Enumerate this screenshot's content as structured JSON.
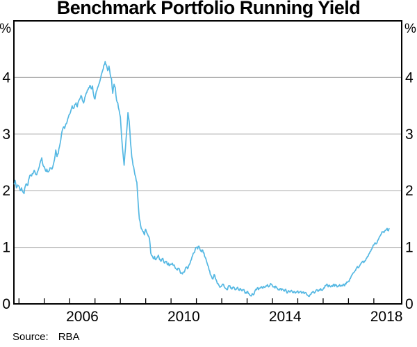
{
  "title": "Benchmark Portfolio Running Yield",
  "source": {
    "label": "Source:",
    "value": "RBA"
  },
  "chart_data": {
    "type": "line",
    "title": "Benchmark Portfolio Running Yield",
    "xlabel": "",
    "ylabel": "%",
    "unit_label": "%",
    "grid": "horizontal",
    "legend": "none",
    "xlim": [
      2003.8,
      2019.1
    ],
    "ylim": [
      0,
      5
    ],
    "yticks": [
      0,
      1,
      2,
      3,
      4
    ],
    "xticks": [
      2004,
      2005,
      2006,
      2007,
      2008,
      2009,
      2010,
      2011,
      2012,
      2013,
      2014,
      2015,
      2016,
      2017,
      2018
    ],
    "xlabels": [
      {
        "x": 2006.5,
        "text": "2006"
      },
      {
        "x": 2010.5,
        "text": "2010"
      },
      {
        "x": 2014.5,
        "text": "2014"
      },
      {
        "x": 2018.5,
        "text": "2018"
      }
    ],
    "colors": {
      "line": "#55b8e3",
      "grid": "#b0b0b0",
      "axis": "#000000"
    },
    "series": [
      {
        "name": "Benchmark portfolio running yield",
        "color": "#55b8e3",
        "points": [
          [
            2003.81,
            2.12
          ],
          [
            2003.85,
            2.18
          ],
          [
            2003.9,
            2.05
          ],
          [
            2003.95,
            2.1
          ],
          [
            2004.0,
            2.08
          ],
          [
            2004.05,
            2.0
          ],
          [
            2004.1,
            2.05
          ],
          [
            2004.15,
            1.98
          ],
          [
            2004.2,
            1.95
          ],
          [
            2004.25,
            2.08
          ],
          [
            2004.3,
            2.12
          ],
          [
            2004.35,
            2.1
          ],
          [
            2004.4,
            2.22
          ],
          [
            2004.45,
            2.28
          ],
          [
            2004.5,
            2.26
          ],
          [
            2004.55,
            2.3
          ],
          [
            2004.6,
            2.36
          ],
          [
            2004.65,
            2.3
          ],
          [
            2004.7,
            2.28
          ],
          [
            2004.75,
            2.35
          ],
          [
            2004.8,
            2.42
          ],
          [
            2004.85,
            2.52
          ],
          [
            2004.9,
            2.58
          ],
          [
            2004.95,
            2.45
          ],
          [
            2005.0,
            2.42
          ],
          [
            2005.05,
            2.35
          ],
          [
            2005.1,
            2.38
          ],
          [
            2005.15,
            2.33
          ],
          [
            2005.2,
            2.36
          ],
          [
            2005.25,
            2.4
          ],
          [
            2005.3,
            2.38
          ],
          [
            2005.35,
            2.45
          ],
          [
            2005.4,
            2.55
          ],
          [
            2005.45,
            2.72
          ],
          [
            2005.5,
            2.6
          ],
          [
            2005.55,
            2.65
          ],
          [
            2005.6,
            2.78
          ],
          [
            2005.65,
            2.9
          ],
          [
            2005.7,
            3.05
          ],
          [
            2005.75,
            3.12
          ],
          [
            2005.8,
            3.1
          ],
          [
            2005.85,
            3.18
          ],
          [
            2005.9,
            3.22
          ],
          [
            2005.95,
            3.3
          ],
          [
            2006.0,
            3.35
          ],
          [
            2006.05,
            3.42
          ],
          [
            2006.1,
            3.5
          ],
          [
            2006.15,
            3.45
          ],
          [
            2006.2,
            3.52
          ],
          [
            2006.25,
            3.55
          ],
          [
            2006.3,
            3.48
          ],
          [
            2006.35,
            3.58
          ],
          [
            2006.4,
            3.62
          ],
          [
            2006.45,
            3.68
          ],
          [
            2006.5,
            3.6
          ],
          [
            2006.55,
            3.55
          ],
          [
            2006.6,
            3.65
          ],
          [
            2006.65,
            3.72
          ],
          [
            2006.7,
            3.78
          ],
          [
            2006.75,
            3.82
          ],
          [
            2006.8,
            3.86
          ],
          [
            2006.85,
            3.8
          ],
          [
            2006.9,
            3.85
          ],
          [
            2006.95,
            3.68
          ],
          [
            2007.0,
            3.62
          ],
          [
            2007.05,
            3.75
          ],
          [
            2007.1,
            3.82
          ],
          [
            2007.15,
            3.88
          ],
          [
            2007.2,
            3.95
          ],
          [
            2007.25,
            4.05
          ],
          [
            2007.3,
            4.12
          ],
          [
            2007.35,
            4.22
          ],
          [
            2007.4,
            4.28
          ],
          [
            2007.45,
            4.22
          ],
          [
            2007.5,
            4.12
          ],
          [
            2007.55,
            4.2
          ],
          [
            2007.6,
            4.05
          ],
          [
            2007.65,
            3.98
          ],
          [
            2007.7,
            3.72
          ],
          [
            2007.75,
            3.88
          ],
          [
            2007.8,
            3.82
          ],
          [
            2007.85,
            3.6
          ],
          [
            2007.9,
            3.55
          ],
          [
            2007.95,
            3.42
          ],
          [
            2008.0,
            3.3
          ],
          [
            2008.05,
            2.95
          ],
          [
            2008.1,
            2.68
          ],
          [
            2008.15,
            2.45
          ],
          [
            2008.2,
            2.75
          ],
          [
            2008.25,
            3.05
          ],
          [
            2008.3,
            3.38
          ],
          [
            2008.35,
            3.22
          ],
          [
            2008.4,
            2.85
          ],
          [
            2008.45,
            2.6
          ],
          [
            2008.5,
            2.45
          ],
          [
            2008.55,
            2.35
          ],
          [
            2008.6,
            2.25
          ],
          [
            2008.65,
            2.15
          ],
          [
            2008.7,
            1.8
          ],
          [
            2008.75,
            1.5
          ],
          [
            2008.8,
            1.38
          ],
          [
            2008.85,
            1.32
          ],
          [
            2008.9,
            1.28
          ],
          [
            2008.95,
            1.22
          ],
          [
            2009.0,
            1.32
          ],
          [
            2009.05,
            1.25
          ],
          [
            2009.1,
            1.2
          ],
          [
            2009.15,
            1.15
          ],
          [
            2009.2,
            0.9
          ],
          [
            2009.25,
            0.85
          ],
          [
            2009.3,
            0.8
          ],
          [
            2009.35,
            0.84
          ],
          [
            2009.4,
            0.78
          ],
          [
            2009.45,
            0.82
          ],
          [
            2009.5,
            0.86
          ],
          [
            2009.55,
            0.78
          ],
          [
            2009.6,
            0.75
          ],
          [
            2009.65,
            0.8
          ],
          [
            2009.7,
            0.76
          ],
          [
            2009.75,
            0.72
          ],
          [
            2009.8,
            0.75
          ],
          [
            2009.85,
            0.7
          ],
          [
            2009.9,
            0.72
          ],
          [
            2009.95,
            0.68
          ],
          [
            2010.0,
            0.7
          ],
          [
            2010.05,
            0.72
          ],
          [
            2010.1,
            0.68
          ],
          [
            2010.15,
            0.65
          ],
          [
            2010.2,
            0.62
          ],
          [
            2010.25,
            0.6
          ],
          [
            2010.3,
            0.63
          ],
          [
            2010.35,
            0.58
          ],
          [
            2010.4,
            0.55
          ],
          [
            2010.45,
            0.53
          ],
          [
            2010.5,
            0.56
          ],
          [
            2010.55,
            0.6
          ],
          [
            2010.6,
            0.65
          ],
          [
            2010.65,
            0.62
          ],
          [
            2010.7,
            0.68
          ],
          [
            2010.75,
            0.72
          ],
          [
            2010.8,
            0.78
          ],
          [
            2010.85,
            0.85
          ],
          [
            2010.9,
            0.9
          ],
          [
            2010.95,
            0.96
          ],
          [
            2011.0,
            1.0
          ],
          [
            2011.05,
            0.97
          ],
          [
            2011.1,
            1.02
          ],
          [
            2011.15,
            0.95
          ],
          [
            2011.2,
            0.92
          ],
          [
            2011.25,
            0.95
          ],
          [
            2011.3,
            0.9
          ],
          [
            2011.35,
            0.82
          ],
          [
            2011.4,
            0.75
          ],
          [
            2011.45,
            0.68
          ],
          [
            2011.5,
            0.6
          ],
          [
            2011.55,
            0.52
          ],
          [
            2011.6,
            0.48
          ],
          [
            2011.65,
            0.44
          ],
          [
            2011.7,
            0.52
          ],
          [
            2011.75,
            0.45
          ],
          [
            2011.8,
            0.4
          ],
          [
            2011.85,
            0.36
          ],
          [
            2011.9,
            0.32
          ],
          [
            2011.95,
            0.3
          ],
          [
            2012.0,
            0.32
          ],
          [
            2012.05,
            0.35
          ],
          [
            2012.1,
            0.3
          ],
          [
            2012.15,
            0.27
          ],
          [
            2012.2,
            0.25
          ],
          [
            2012.25,
            0.3
          ],
          [
            2012.3,
            0.32
          ],
          [
            2012.35,
            0.28
          ],
          [
            2012.4,
            0.26
          ],
          [
            2012.45,
            0.3
          ],
          [
            2012.5,
            0.28
          ],
          [
            2012.55,
            0.25
          ],
          [
            2012.6,
            0.28
          ],
          [
            2012.65,
            0.26
          ],
          [
            2012.7,
            0.24
          ],
          [
            2012.75,
            0.26
          ],
          [
            2012.8,
            0.23
          ],
          [
            2012.85,
            0.25
          ],
          [
            2012.9,
            0.22
          ],
          [
            2012.95,
            0.2
          ],
          [
            2013.0,
            0.22
          ],
          [
            2013.05,
            0.18
          ],
          [
            2013.1,
            0.16
          ],
          [
            2013.15,
            0.14
          ],
          [
            2013.2,
            0.18
          ],
          [
            2013.25,
            0.16
          ],
          [
            2013.3,
            0.22
          ],
          [
            2013.35,
            0.26
          ],
          [
            2013.4,
            0.28
          ],
          [
            2013.45,
            0.25
          ],
          [
            2013.5,
            0.28
          ],
          [
            2013.55,
            0.3
          ],
          [
            2013.6,
            0.28
          ],
          [
            2013.65,
            0.31
          ],
          [
            2013.7,
            0.29
          ],
          [
            2013.75,
            0.32
          ],
          [
            2013.8,
            0.34
          ],
          [
            2013.85,
            0.3
          ],
          [
            2013.9,
            0.33
          ],
          [
            2013.95,
            0.35
          ],
          [
            2014.0,
            0.32
          ],
          [
            2014.05,
            0.3
          ],
          [
            2014.1,
            0.28
          ],
          [
            2014.15,
            0.3
          ],
          [
            2014.2,
            0.27
          ],
          [
            2014.25,
            0.25
          ],
          [
            2014.3,
            0.27
          ],
          [
            2014.35,
            0.24
          ],
          [
            2014.4,
            0.26
          ],
          [
            2014.45,
            0.23
          ],
          [
            2014.5,
            0.25
          ],
          [
            2014.55,
            0.22
          ],
          [
            2014.6,
            0.2
          ],
          [
            2014.65,
            0.23
          ],
          [
            2014.7,
            0.21
          ],
          [
            2014.75,
            0.24
          ],
          [
            2014.8,
            0.2
          ],
          [
            2014.85,
            0.22
          ],
          [
            2014.9,
            0.19
          ],
          [
            2014.95,
            0.21
          ],
          [
            2015.0,
            0.23
          ],
          [
            2015.05,
            0.2
          ],
          [
            2015.1,
            0.22
          ],
          [
            2015.15,
            0.19
          ],
          [
            2015.2,
            0.21
          ],
          [
            2015.25,
            0.18
          ],
          [
            2015.3,
            0.2
          ],
          [
            2015.35,
            0.17
          ],
          [
            2015.4,
            0.15
          ],
          [
            2015.45,
            0.13
          ],
          [
            2015.5,
            0.17
          ],
          [
            2015.55,
            0.2
          ],
          [
            2015.6,
            0.22
          ],
          [
            2015.65,
            0.19
          ],
          [
            2015.7,
            0.22
          ],
          [
            2015.75,
            0.25
          ],
          [
            2015.8,
            0.22
          ],
          [
            2015.85,
            0.25
          ],
          [
            2015.9,
            0.27
          ],
          [
            2015.95,
            0.24
          ],
          [
            2016.0,
            0.26
          ],
          [
            2016.05,
            0.28
          ],
          [
            2016.1,
            0.32
          ],
          [
            2016.15,
            0.35
          ],
          [
            2016.2,
            0.3
          ],
          [
            2016.25,
            0.33
          ],
          [
            2016.3,
            0.3
          ],
          [
            2016.35,
            0.32
          ],
          [
            2016.4,
            0.34
          ],
          [
            2016.45,
            0.31
          ],
          [
            2016.5,
            0.33
          ],
          [
            2016.55,
            0.3
          ],
          [
            2016.6,
            0.32
          ],
          [
            2016.65,
            0.34
          ],
          [
            2016.7,
            0.31
          ],
          [
            2016.75,
            0.33
          ],
          [
            2016.8,
            0.35
          ],
          [
            2016.85,
            0.32
          ],
          [
            2016.9,
            0.35
          ],
          [
            2016.95,
            0.38
          ],
          [
            2017.0,
            0.4
          ],
          [
            2017.05,
            0.44
          ],
          [
            2017.1,
            0.48
          ],
          [
            2017.15,
            0.52
          ],
          [
            2017.2,
            0.55
          ],
          [
            2017.25,
            0.58
          ],
          [
            2017.3,
            0.62
          ],
          [
            2017.35,
            0.66
          ],
          [
            2017.4,
            0.64
          ],
          [
            2017.45,
            0.68
          ],
          [
            2017.5,
            0.72
          ],
          [
            2017.55,
            0.75
          ],
          [
            2017.6,
            0.73
          ],
          [
            2017.65,
            0.76
          ],
          [
            2017.7,
            0.8
          ],
          [
            2017.75,
            0.84
          ],
          [
            2017.8,
            0.88
          ],
          [
            2017.85,
            0.92
          ],
          [
            2017.9,
            0.96
          ],
          [
            2017.95,
            1.0
          ],
          [
            2018.0,
            1.04
          ],
          [
            2018.05,
            1.08
          ],
          [
            2018.1,
            1.06
          ],
          [
            2018.15,
            1.12
          ],
          [
            2018.2,
            1.16
          ],
          [
            2018.25,
            1.2
          ],
          [
            2018.3,
            1.24
          ],
          [
            2018.35,
            1.27
          ],
          [
            2018.4,
            1.26
          ],
          [
            2018.45,
            1.3
          ],
          [
            2018.5,
            1.32
          ],
          [
            2018.55,
            1.3
          ],
          [
            2018.6,
            1.33
          ]
        ]
      }
    ]
  }
}
